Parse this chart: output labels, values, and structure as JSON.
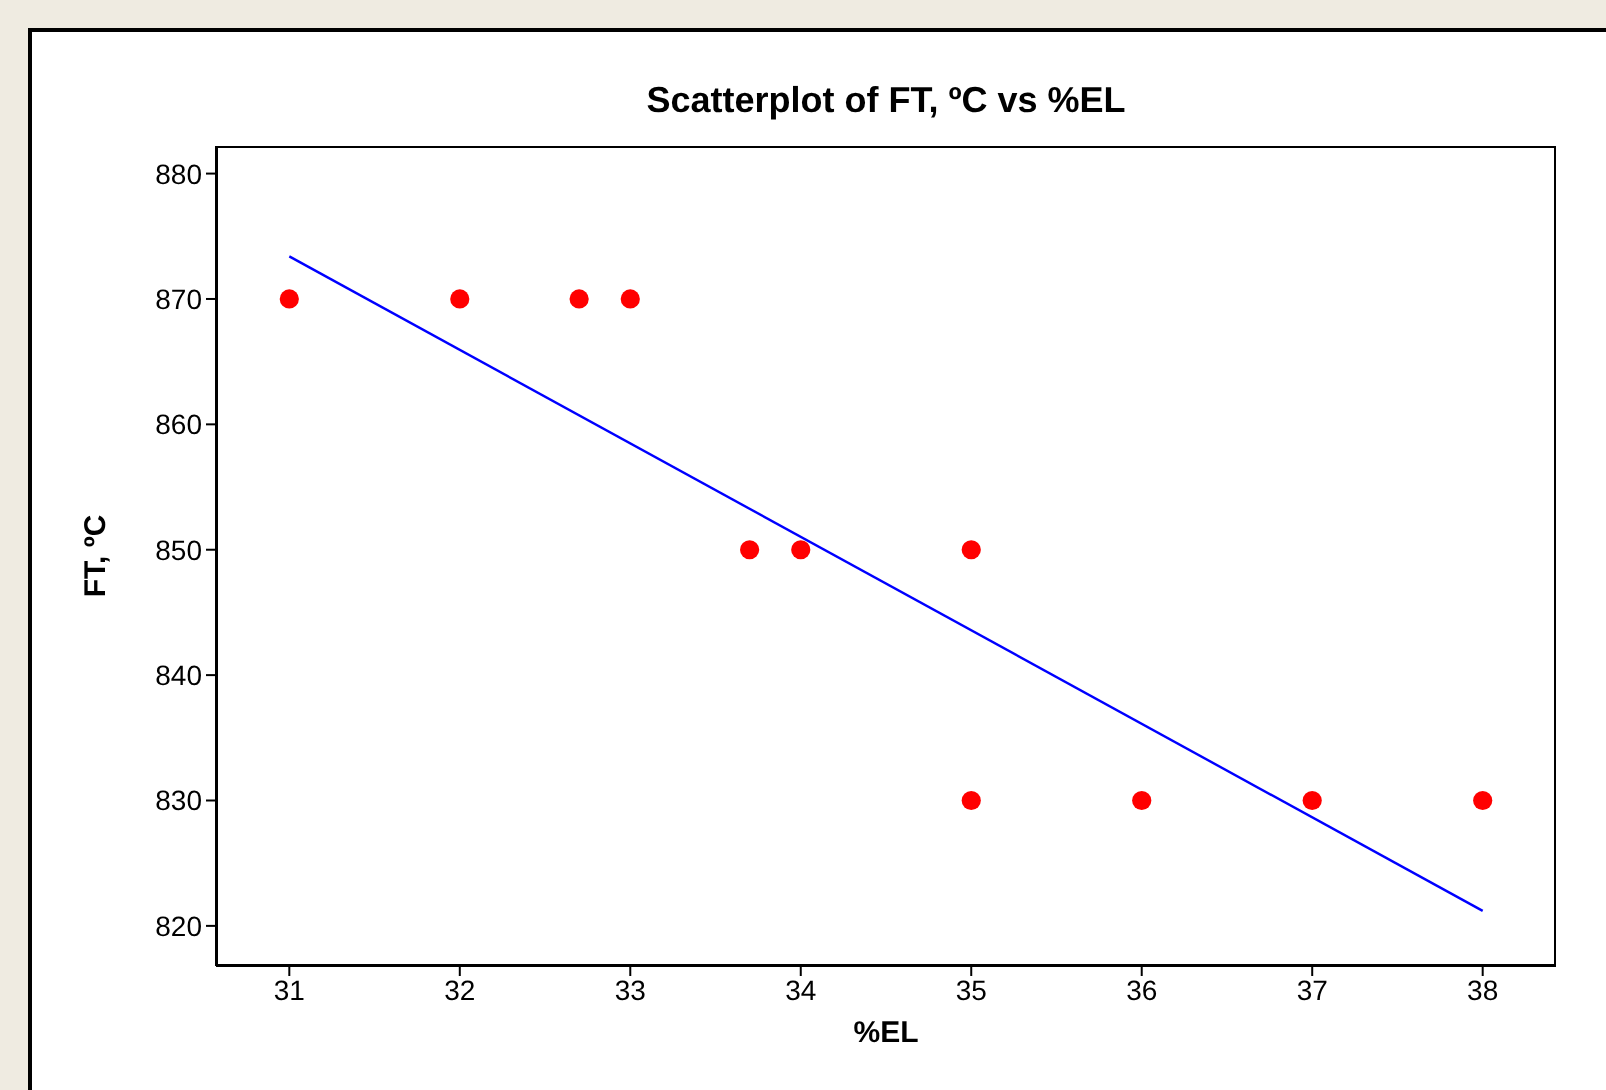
{
  "chart_data": {
    "type": "scatter",
    "title": "Scatterplot of FT, ºC vs %EL",
    "xlabel": "%EL",
    "ylabel": "FT, ºC",
    "xlim": [
      30.57,
      38.43
    ],
    "xticks": [
      31,
      32,
      33,
      34,
      35,
      36,
      37,
      38
    ],
    "ylim": [
      816.8,
      882.2
    ],
    "yticks": [
      820,
      830,
      840,
      850,
      860,
      870,
      880
    ],
    "grid": false,
    "series": [
      {
        "color": "#ff0000",
        "marker": "circle",
        "x": [
          31,
          32,
          32.7,
          33,
          33.7,
          34,
          35,
          35,
          36,
          37,
          38
        ],
        "values": [
          870,
          870,
          870,
          870,
          850,
          850,
          850,
          830,
          830,
          830,
          830
        ]
      },
      {
        "type": "line",
        "color": "#0000ff",
        "marker": "none",
        "x": [
          31,
          38
        ],
        "values": [
          873.4,
          821.2
        ]
      }
    ]
  }
}
